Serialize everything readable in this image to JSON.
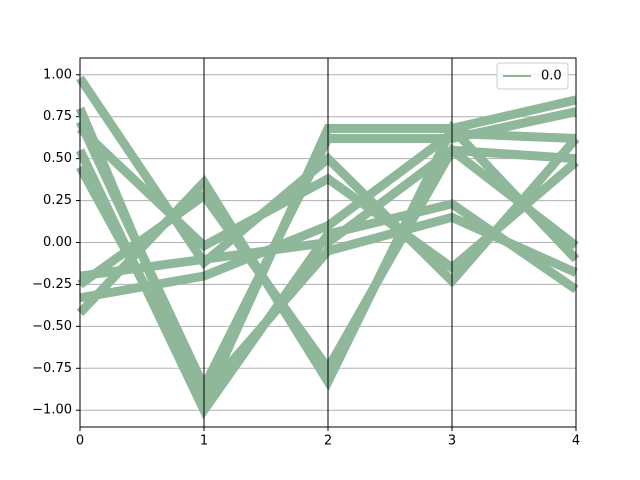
{
  "chart_data": {
    "type": "parallel_coordinates",
    "class_name": "0.0",
    "color": "#8fb89a",
    "xlim": [
      0,
      4
    ],
    "xticks": [
      0,
      1,
      2,
      3,
      4
    ],
    "ylim": [
      -1.1,
      1.1
    ],
    "yticks": [
      {
        "value": -1,
        "label": "−1.00"
      },
      {
        "value": -0.75,
        "label": "−0.75"
      },
      {
        "value": -0.5,
        "label": "−0.50"
      },
      {
        "value": -0.25,
        "label": "−0.25"
      },
      {
        "value": 0,
        "label": "0.00"
      },
      {
        "value": 0.25,
        "label": "0.25"
      },
      {
        "value": 0.5,
        "label": "0.50"
      },
      {
        "value": 0.75,
        "label": "0.75"
      },
      {
        "value": 1,
        "label": "1.00"
      }
    ],
    "grid": true,
    "legend_position": "upper-right",
    "lines": [
      [
        0.72,
        -0.86,
        0.62,
        0.62,
        0.78
      ],
      [
        0.8,
        -0.95,
        0.68,
        0.68,
        0.85
      ],
      [
        0.45,
        -0.9,
        -0.05,
        0.15,
        -0.18
      ],
      [
        0.55,
        -1.0,
        0.05,
        0.23,
        -0.28
      ],
      [
        0.68,
        -0.02,
        0.38,
        -0.15,
        0.48
      ],
      [
        0.98,
        -0.12,
        0.5,
        -0.23,
        0.62
      ],
      [
        -0.25,
        0.28,
        -0.75,
        0.55,
        -0.02
      ],
      [
        -0.42,
        0.36,
        -0.83,
        0.68,
        -0.1
      ],
      [
        -0.2,
        -0.1,
        0.0,
        0.55,
        0.5
      ],
      [
        -0.33,
        -0.2,
        0.1,
        0.65,
        0.62
      ]
    ]
  }
}
